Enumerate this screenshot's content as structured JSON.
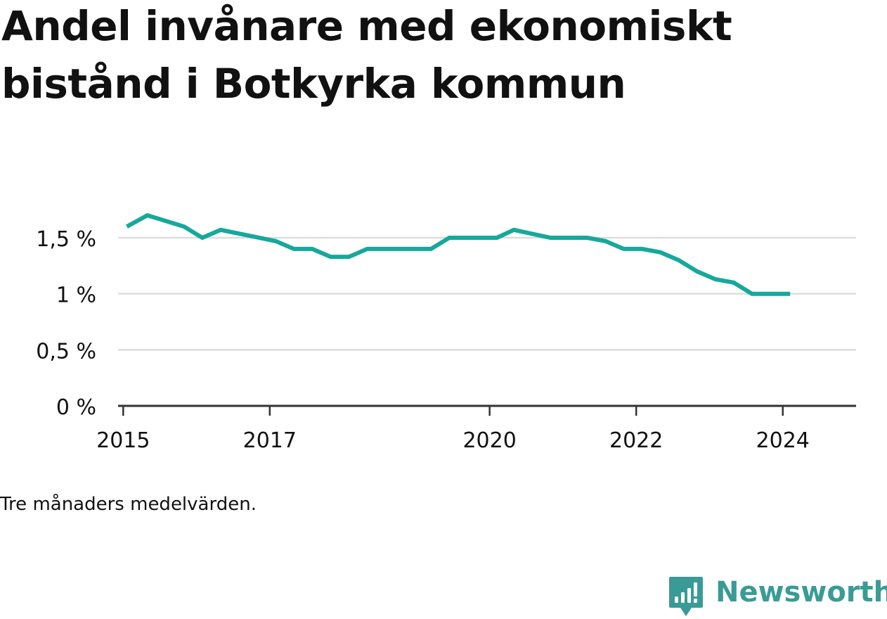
{
  "title": "Andel invånare med ekonomiskt bistånd i Botkyrka kommun",
  "note": "Tre månaders medelvärden.",
  "brand": {
    "name": "Newsworthy",
    "color": "#3a9b96"
  },
  "colors": {
    "line": "#16a89b",
    "grid": "#dddddd",
    "axis": "#333333",
    "text": "#111111"
  },
  "chart_data": {
    "type": "line",
    "title": "Andel invånare med ekonomiskt bistånd i Botkyrka kommun",
    "xlabel": "",
    "ylabel": "",
    "ylim": [
      0,
      1.5
    ],
    "xlim": [
      2014.93,
      2025.0
    ],
    "grid": true,
    "legend": "none",
    "y_ticks": [
      {
        "value": 0,
        "label": "0 %"
      },
      {
        "value": 0.5,
        "label": "0,5 %"
      },
      {
        "value": 1,
        "label": "1 %"
      },
      {
        "value": 1.5,
        "label": "1,5 %"
      }
    ],
    "x_ticks": [
      {
        "value": 2015.0,
        "label": "2015"
      },
      {
        "value": 2017.0,
        "label": "2017"
      },
      {
        "value": 2020.0,
        "label": "2020"
      },
      {
        "value": 2022.0,
        "label": "2022"
      },
      {
        "value": 2024.0,
        "label": "2024"
      }
    ],
    "series": [
      {
        "values": [
          {
            "x": 2015.05,
            "y": 1.6
          },
          {
            "x": 2015.33,
            "y": 1.7
          },
          {
            "x": 2015.83,
            "y": 1.6
          },
          {
            "x": 2016.08,
            "y": 1.5
          },
          {
            "x": 2016.33,
            "y": 1.57
          },
          {
            "x": 2017.08,
            "y": 1.47
          },
          {
            "x": 2017.33,
            "y": 1.4
          },
          {
            "x": 2017.58,
            "y": 1.4
          },
          {
            "x": 2017.83,
            "y": 1.33
          },
          {
            "x": 2018.08,
            "y": 1.33
          },
          {
            "x": 2018.33,
            "y": 1.4
          },
          {
            "x": 2018.58,
            "y": 1.4
          },
          {
            "x": 2019.2,
            "y": 1.4
          },
          {
            "x": 2019.45,
            "y": 1.5
          },
          {
            "x": 2019.7,
            "y": 1.5
          },
          {
            "x": 2020.1,
            "y": 1.5
          },
          {
            "x": 2020.33,
            "y": 1.57
          },
          {
            "x": 2020.83,
            "y": 1.5
          },
          {
            "x": 2021.08,
            "y": 1.5
          },
          {
            "x": 2021.33,
            "y": 1.5
          },
          {
            "x": 2021.58,
            "y": 1.47
          },
          {
            "x": 2021.83,
            "y": 1.4
          },
          {
            "x": 2022.08,
            "y": 1.4
          },
          {
            "x": 2022.33,
            "y": 1.37
          },
          {
            "x": 2022.58,
            "y": 1.3
          },
          {
            "x": 2022.83,
            "y": 1.2
          },
          {
            "x": 2023.08,
            "y": 1.13
          },
          {
            "x": 2023.33,
            "y": 1.1
          },
          {
            "x": 2023.58,
            "y": 1.0
          },
          {
            "x": 2023.83,
            "y": 1.0
          },
          {
            "x": 2024.1,
            "y": 1.0
          }
        ]
      }
    ]
  }
}
